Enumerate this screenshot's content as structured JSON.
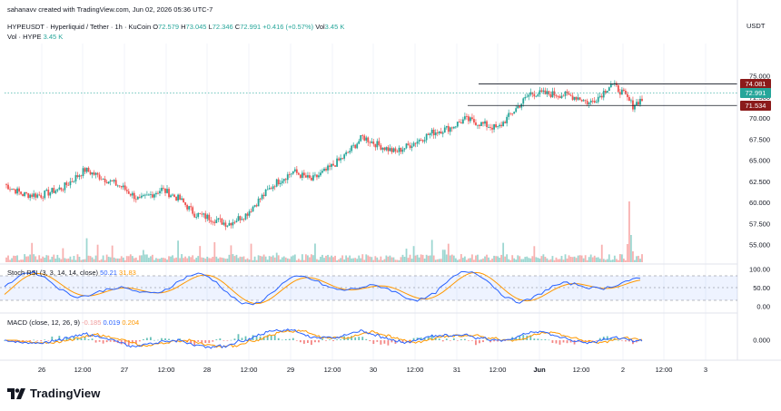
{
  "attribution": "sahanavv created with TradingView.com, Jun 02, 2026 05:36 UTC-7",
  "currency": "USDT",
  "symbol": {
    "title": "HYPEUSDT · Hyperliquid / Tether · 1h · KuCoin",
    "o_label": "O",
    "o": "72.579",
    "h_label": "H",
    "h": "73.045",
    "l_label": "L",
    "l": "72.346",
    "c_label": "C",
    "c": "72.991",
    "change": "+0.416 (+0.57%)",
    "vol_label": "Vol",
    "vol": "3.45 K"
  },
  "volume_legend": {
    "label": "Vol · HYPE",
    "value": "3.45 K"
  },
  "price_tags": [
    {
      "value": "74.081",
      "color": "#8b1a1a"
    },
    {
      "value": "72.991",
      "color": "#26a69a"
    },
    {
      "value": "71.534",
      "color": "#8b1a1a"
    }
  ],
  "rsi_legend": {
    "label": "Stoch RSI (3, 3, 14, 14, close)",
    "k": "50.21",
    "d": "31.83"
  },
  "macd_legend": {
    "label": "MACD (close, 12, 26, 9)",
    "hist": "-0.185",
    "macd": "0.019",
    "signal": "0.204"
  },
  "brand": "TradingView",
  "colors": {
    "up": "#26a69a",
    "down": "#ef5350",
    "k_line": "#2962ff",
    "d_line": "#ff9800",
    "resistance": "#131722"
  },
  "chart_data": [
    {
      "type": "candlestick",
      "title": "HYPEUSDT · Hyperliquid / Tether · 1h · KuCoin",
      "ylabel": "USDT",
      "y_ticks": [
        "75.000",
        "72.500",
        "70.000",
        "67.500",
        "65.000",
        "62.500",
        "60.000",
        "57.500",
        "55.000"
      ],
      "x_ticks": [
        "26",
        "12:00",
        "27",
        "12:00",
        "28",
        "12:00",
        "29",
        "12:00",
        "30",
        "12:00",
        "31",
        "12:00",
        "Jun",
        "12:00",
        "2",
        "12:00",
        "3"
      ],
      "ylim": [
        53.0,
        78.0
      ],
      "close_path": [
        [
          0,
          62.2
        ],
        [
          10,
          61.0
        ],
        [
          20,
          60.9
        ],
        [
          32,
          61.8
        ],
        [
          44,
          63.9
        ],
        [
          56,
          62.7
        ],
        [
          64,
          61.9
        ],
        [
          74,
          60.3
        ],
        [
          86,
          61.6
        ],
        [
          96,
          60.4
        ],
        [
          104,
          58.7
        ],
        [
          114,
          58.1
        ],
        [
          122,
          57.5
        ],
        [
          132,
          58.6
        ],
        [
          140,
          60.5
        ],
        [
          148,
          62.3
        ],
        [
          158,
          63.7
        ],
        [
          168,
          62.7
        ],
        [
          176,
          63.8
        ],
        [
          186,
          65.5
        ],
        [
          196,
          67.8
        ],
        [
          204,
          66.9
        ],
        [
          214,
          66.0
        ],
        [
          224,
          67.1
        ],
        [
          234,
          68.3
        ],
        [
          244,
          68.9
        ],
        [
          252,
          69.9
        ],
        [
          262,
          69.3
        ],
        [
          270,
          68.8
        ],
        [
          278,
          70.7
        ],
        [
          288,
          73.0
        ],
        [
          298,
          72.9
        ],
        [
          306,
          72.8
        ],
        [
          314,
          72.5
        ],
        [
          320,
          71.8
        ],
        [
          326,
          72.7
        ],
        [
          332,
          74.1
        ],
        [
          338,
          73.1
        ],
        [
          344,
          71.5
        ],
        [
          348,
          72.2
        ]
      ],
      "resistance": 74.081,
      "support": 71.534,
      "volume_peak": 60.0
    },
    {
      "type": "line",
      "title": "Stoch RSI (3, 3, 14, 14, close)",
      "y_ticks": [
        "100.00",
        "50.00",
        "0.00"
      ],
      "bands": [
        80,
        20
      ],
      "series": [
        {
          "name": "K",
          "last": 50.21
        },
        {
          "name": "D",
          "last": 31.83
        }
      ]
    },
    {
      "type": "line",
      "title": "MACD (close, 12, 26, 9)",
      "y_ticks": [
        "0.000"
      ],
      "series": [
        {
          "name": "Histogram",
          "last": -0.185
        },
        {
          "name": "MACD",
          "last": 0.019
        },
        {
          "name": "Signal",
          "last": 0.204
        }
      ]
    }
  ]
}
